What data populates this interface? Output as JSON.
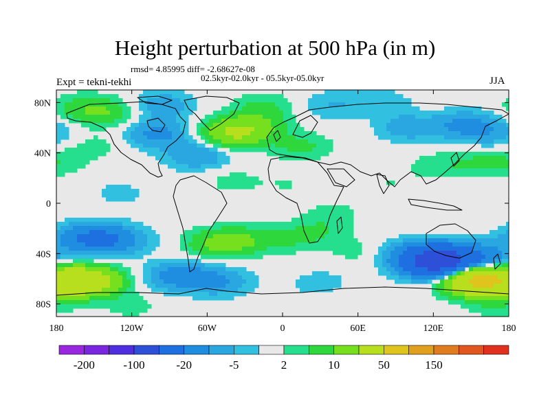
{
  "header": {
    "title": "Height perturbation at 500 hPa (in m)",
    "stats": "rmsd= 4.85995 diff= -2.68627e-08",
    "period": "02.5kyr-02.0kyr - 05.5kyr-05.0kyr",
    "experiment": "Expt = tekni-tekhi",
    "season": "JJA"
  },
  "chart_data": {
    "type": "heatmap",
    "title": "Height perturbation at 500 hPa (in m)",
    "xlabel": "",
    "ylabel": "",
    "xlim": [
      -180,
      180
    ],
    "ylim": [
      -90,
      90
    ],
    "x_ticks": [
      {
        "value": -180,
        "label": "180"
      },
      {
        "value": -120,
        "label": "120W"
      },
      {
        "value": -60,
        "label": "60W"
      },
      {
        "value": 0,
        "label": "0"
      },
      {
        "value": 60,
        "label": "60E"
      },
      {
        "value": 120,
        "label": "120E"
      },
      {
        "value": 180,
        "label": "180"
      }
    ],
    "y_ticks": [
      {
        "value": 80,
        "label": "80N"
      },
      {
        "value": 40,
        "label": "40N"
      },
      {
        "value": 0,
        "label": "0"
      },
      {
        "value": -40,
        "label": "40S"
      },
      {
        "value": -80,
        "label": "80S"
      }
    ],
    "colorbar": {
      "colors": [
        "#9a27e0",
        "#7a26e0",
        "#4f2ee0",
        "#2e4fd8",
        "#1e6fe0",
        "#1f8de0",
        "#2aa6e0",
        "#32c0e0",
        "#e8e8e8",
        "#26df8e",
        "#2ed83c",
        "#76df1e",
        "#b8df1e",
        "#dfc41e",
        "#e0a01e",
        "#e07c1e",
        "#e0561e",
        "#e0301e"
      ],
      "labels": [
        "-200",
        "-100",
        "-20",
        "-5",
        "2",
        "10",
        "50",
        "150"
      ]
    },
    "anomalies_m": [
      {
        "lon": 155,
        "lat": -61,
        "value": 60
      },
      {
        "lon": -168,
        "lat": -62,
        "value": 30
      },
      {
        "lon": -150,
        "lat": -62,
        "value": 20
      },
      {
        "lon": 128,
        "lat": -45,
        "value": -60
      },
      {
        "lon": 115,
        "lat": -48,
        "value": -25
      },
      {
        "lon": 160,
        "lat": -44,
        "value": -15
      },
      {
        "lon": 100,
        "lat": -40,
        "value": -8
      },
      {
        "lon": -145,
        "lat": -28,
        "value": -20
      },
      {
        "lon": -165,
        "lat": -28,
        "value": -8
      },
      {
        "lon": -125,
        "lat": -30,
        "value": -6
      },
      {
        "lon": -35,
        "lat": -30,
        "value": 10
      },
      {
        "lon": -55,
        "lat": -32,
        "value": 8
      },
      {
        "lon": 5,
        "lat": -28,
        "value": 5
      },
      {
        "lon": 30,
        "lat": -22,
        "value": 4
      },
      {
        "lon": 40,
        "lat": -8,
        "value": 3
      },
      {
        "lon": 60,
        "lat": -38,
        "value": 3
      },
      {
        "lon": -82,
        "lat": -58,
        "value": -15
      },
      {
        "lon": -50,
        "lat": -62,
        "value": -10
      },
      {
        "lon": 30,
        "lat": -64,
        "value": -4
      },
      {
        "lon": -120,
        "lat": -82,
        "value": 3
      },
      {
        "lon": 170,
        "lat": -80,
        "value": 4
      },
      {
        "lon": 50,
        "lat": -78,
        "value": 2
      },
      {
        "lon": -40,
        "lat": 56,
        "value": 20
      },
      {
        "lon": -20,
        "lat": 60,
        "value": 8
      },
      {
        "lon": 15,
        "lat": 45,
        "value": 6
      },
      {
        "lon": -140,
        "lat": 72,
        "value": 8
      },
      {
        "lon": -160,
        "lat": 76,
        "value": 6
      },
      {
        "lon": -15,
        "lat": 76,
        "value": 6
      },
      {
        "lon": 40,
        "lat": 78,
        "value": -5
      },
      {
        "lon": 80,
        "lat": 80,
        "value": -4
      },
      {
        "lon": -100,
        "lat": 55,
        "value": -12
      },
      {
        "lon": -68,
        "lat": 38,
        "value": -10
      },
      {
        "lon": -95,
        "lat": 78,
        "value": -8
      },
      {
        "lon": 145,
        "lat": 62,
        "value": -12
      },
      {
        "lon": 100,
        "lat": 60,
        "value": -8
      },
      {
        "lon": 170,
        "lat": 55,
        "value": -6
      },
      {
        "lon": -150,
        "lat": 46,
        "value": 3
      },
      {
        "lon": 160,
        "lat": 32,
        "value": 5
      },
      {
        "lon": 125,
        "lat": 30,
        "value": 4
      },
      {
        "lon": -175,
        "lat": 33,
        "value": 3
      },
      {
        "lon": -40,
        "lat": 18,
        "value": 3
      },
      {
        "lon": 5,
        "lat": 15,
        "value": 2
      },
      {
        "lon": -130,
        "lat": 8,
        "value": -3
      },
      {
        "lon": 85,
        "lat": 15,
        "value": 2
      }
    ]
  }
}
